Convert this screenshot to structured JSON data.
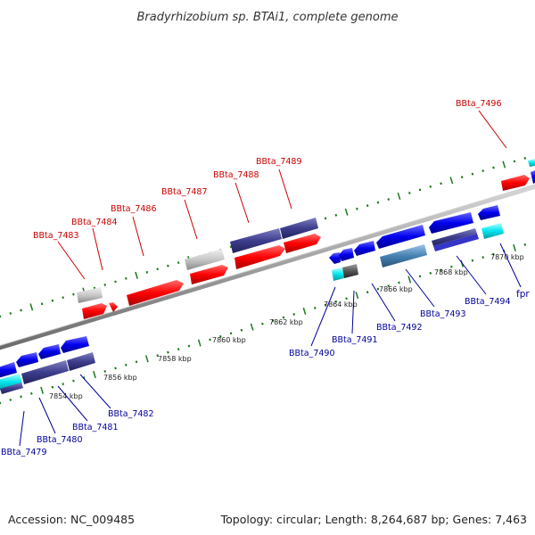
{
  "title": "Bradyrhizobium sp. BTAi1, complete genome",
  "footer": {
    "accession": "Accession: NC_009485",
    "summary": "Topology: circular; Length: 8,264,687 bp; Genes: 7,463"
  },
  "colors": {
    "forward": "#ff0000",
    "reverse": "#0000ee",
    "rna": "#00e5ee",
    "pseudo": "#c8c8c8",
    "hypothetical": "#3d3d8e",
    "other": "#4682b4",
    "backbone": "#9e9e9e",
    "tick": "#1a7a1a",
    "label_forward": "#cc0000",
    "label_reverse": "#000099"
  },
  "tick_labels": [
    "7854 kbp",
    "7856 kbp",
    "7858 kbp",
    "7860 kbp",
    "7862 kbp",
    "7864 kbp",
    "7866 kbp",
    "7868 kbp",
    "7870 kbp"
  ],
  "genes_top": [
    "BBta_7483",
    "BBta_7484",
    "BBta_7486",
    "BBta_7487",
    "BBta_7488",
    "BBta_7489",
    "BBta_7496"
  ],
  "genes_bottom": [
    "BBta_7479",
    "BBta_7480",
    "BBta_7481",
    "BBta_7482",
    "BBta_7490",
    "BBta_7491",
    "BBta_7492",
    "BBta_7493",
    "BBta_7494",
    "fpr"
  ]
}
